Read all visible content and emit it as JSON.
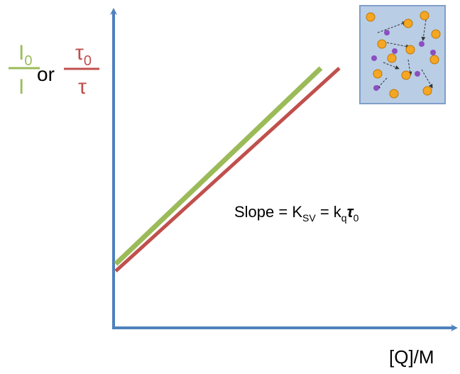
{
  "y_label": {
    "intensity_ratio": {
      "numerator": "I",
      "numerator_subscript": "0",
      "denominator": "I"
    },
    "connector": "or",
    "lifetime_ratio": {
      "numerator": "τ",
      "numerator_subscript": "0",
      "denominator": "τ"
    }
  },
  "annotation": {
    "slope": "Slope = K",
    "ksv_subscript": "SV",
    "equals_k": " = k",
    "kq_subscript": "q",
    "tau": "τ",
    "tau_subscript": "0"
  },
  "x_label": "[Q]/M"
}
